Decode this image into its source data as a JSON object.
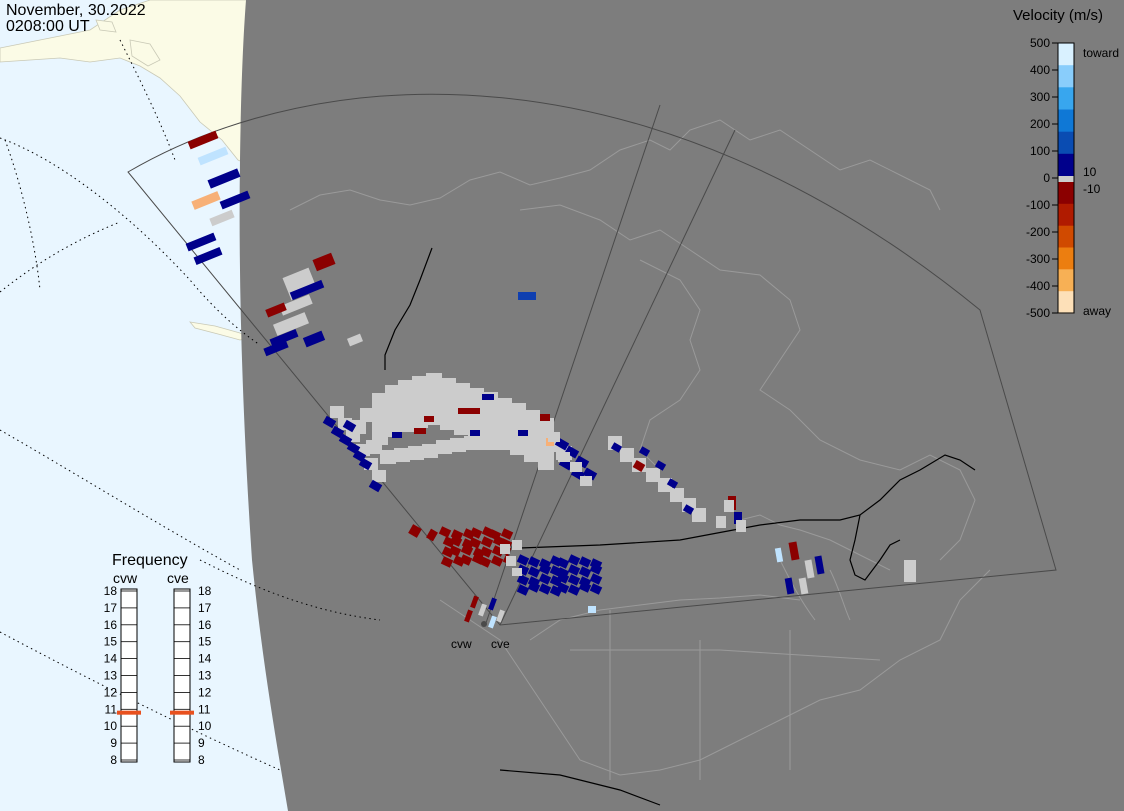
{
  "header": {
    "date": "November, 30.2022",
    "time": "0208:00 UT"
  },
  "legend": {
    "title": "Velocity (m/s)",
    "ticks": [
      "500",
      "400",
      "300",
      "200",
      "100",
      "0",
      "-100",
      "-200",
      "-300",
      "-400",
      "-500"
    ],
    "toward_label": "toward",
    "away_label": "away",
    "plus_threshold": "10",
    "minus_threshold": "-10",
    "colors": [
      "#d9f1ff",
      "#89cdfb",
      "#38a6ee",
      "#0f78d6",
      "#0a4cb2",
      "#00008b",
      "#8b0000",
      "#b01b00",
      "#d04a00",
      "#ec7e10",
      "#f7b055",
      "#fde0b8"
    ]
  },
  "frequency": {
    "title": "Frequency",
    "radars": [
      {
        "name": "cvw",
        "value_mhz": 10.8
      },
      {
        "name": "cve",
        "value_mhz": 10.8
      }
    ],
    "scale": [
      "18",
      "17",
      "16",
      "15",
      "14",
      "13",
      "12",
      "11",
      "10",
      "9",
      "8"
    ],
    "indicator_color": "#e8501e"
  },
  "map": {
    "radar_labels": [
      "cvw",
      "cve"
    ],
    "colors": {
      "ocean": "#e9f6ff",
      "land_sunlit": "#fbfbe6",
      "night": "#7d7d7d",
      "low_velocity": "#cccccc"
    }
  }
}
